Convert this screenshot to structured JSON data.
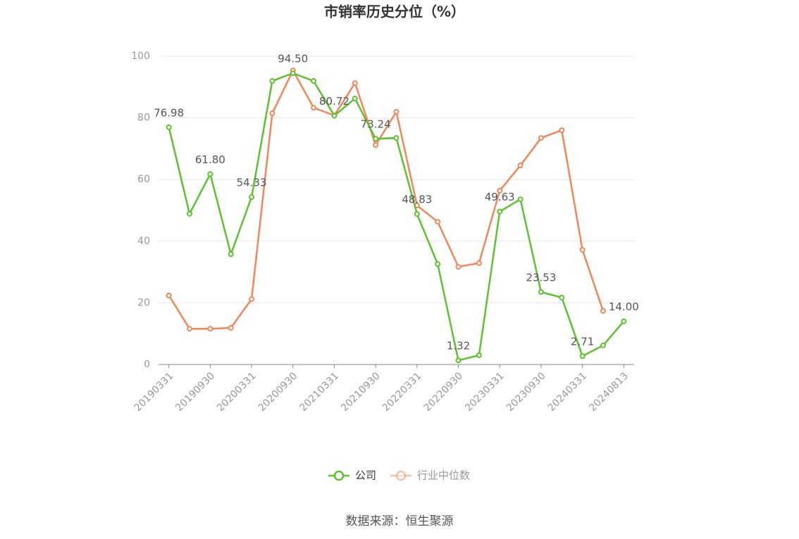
{
  "chart_data": {
    "type": "line",
    "title": "市销率历史分位（%）",
    "categories": [
      "20190331",
      null,
      "20190930",
      null,
      "20200331",
      null,
      "20200930",
      null,
      "20210331",
      null,
      "20210930",
      null,
      "20220331",
      null,
      "20220930",
      null,
      "20230331",
      null,
      "20230930",
      null,
      "20240331",
      null,
      "20240813"
    ],
    "series": [
      {
        "name": "公司",
        "color": "#5ec12e",
        "values": [
          76.98,
          48.9,
          61.8,
          35.8,
          54.33,
          92.0,
          94.5,
          92.0,
          80.72,
          86.3,
          73.24,
          73.5,
          48.83,
          32.6,
          1.32,
          3.0,
          49.63,
          53.6,
          23.53,
          21.7,
          2.71,
          6.2,
          14.0
        ],
        "value_labels": [
          "76.98",
          null,
          "61.80",
          null,
          "54.33",
          null,
          "94.50",
          null,
          "80.72",
          null,
          "73.24",
          null,
          "48.83",
          null,
          "1.32",
          null,
          "49.63",
          null,
          "23.53",
          null,
          "2.71",
          null,
          "14.00"
        ]
      },
      {
        "name": "行业中位数",
        "color": "#f0875a",
        "values": [
          22.4,
          11.6,
          11.6,
          11.9,
          21.2,
          81.5,
          95.4,
          83.3,
          80.8,
          91.3,
          71.2,
          82.0,
          51.6,
          46.3,
          31.7,
          32.9,
          56.4,
          64.6,
          73.5,
          76.0,
          37.2,
          17.4,
          null
        ]
      }
    ],
    "ylim": [
      0,
      100
    ],
    "yticks": [
      0,
      20,
      40,
      60,
      80,
      100
    ],
    "grid": true,
    "legend": "bottom",
    "source": "数据来源：恒生聚源"
  }
}
